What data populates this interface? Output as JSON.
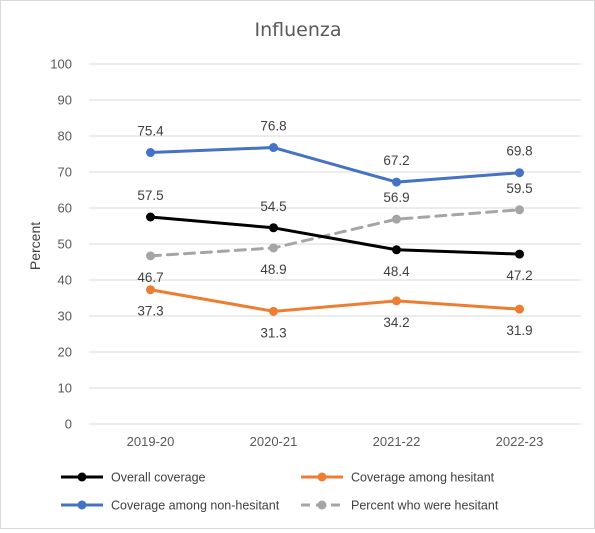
{
  "chart_data": {
    "type": "line",
    "title": "Influenza",
    "xlabel": "",
    "ylabel": "Percent",
    "categories": [
      "2019-20",
      "2020-21",
      "2021-22",
      "2022-23"
    ],
    "ylim": [
      0,
      100
    ],
    "yticks": [
      0,
      10,
      20,
      30,
      40,
      50,
      60,
      70,
      80,
      90,
      100
    ],
    "grid": true,
    "legend_position": "bottom",
    "series": [
      {
        "name": "Overall coverage",
        "values": [
          57.5,
          54.5,
          48.4,
          47.2
        ],
        "color": "#000000",
        "dashed": false,
        "labels": [
          "57.5",
          "54.5",
          "48.4",
          "47.2"
        ],
        "label_pos": [
          "above",
          "above",
          "below",
          "below"
        ]
      },
      {
        "name": "Coverage among hesitant",
        "values": [
          37.3,
          31.3,
          34.2,
          31.9
        ],
        "color": "#ED7D31",
        "dashed": false,
        "labels": [
          "37.3",
          "31.3",
          "34.2",
          "31.9"
        ],
        "label_pos": [
          "below",
          "below",
          "below",
          "below"
        ]
      },
      {
        "name": "Coverage among non-hesitant",
        "values": [
          75.4,
          76.8,
          67.2,
          69.8
        ],
        "color": "#4472C4",
        "dashed": false,
        "labels": [
          "75.4",
          "76.8",
          "67.2",
          "69.8"
        ],
        "label_pos": [
          "above",
          "above",
          "above",
          "above"
        ]
      },
      {
        "name": "Percent who were hesitant",
        "values": [
          46.7,
          48.9,
          56.9,
          59.5
        ],
        "color": "#A5A5A5",
        "dashed": true,
        "labels": [
          "46.7",
          "48.9",
          "56.9",
          "59.5"
        ],
        "label_pos": [
          "below",
          "below",
          "above",
          "above"
        ]
      }
    ]
  }
}
